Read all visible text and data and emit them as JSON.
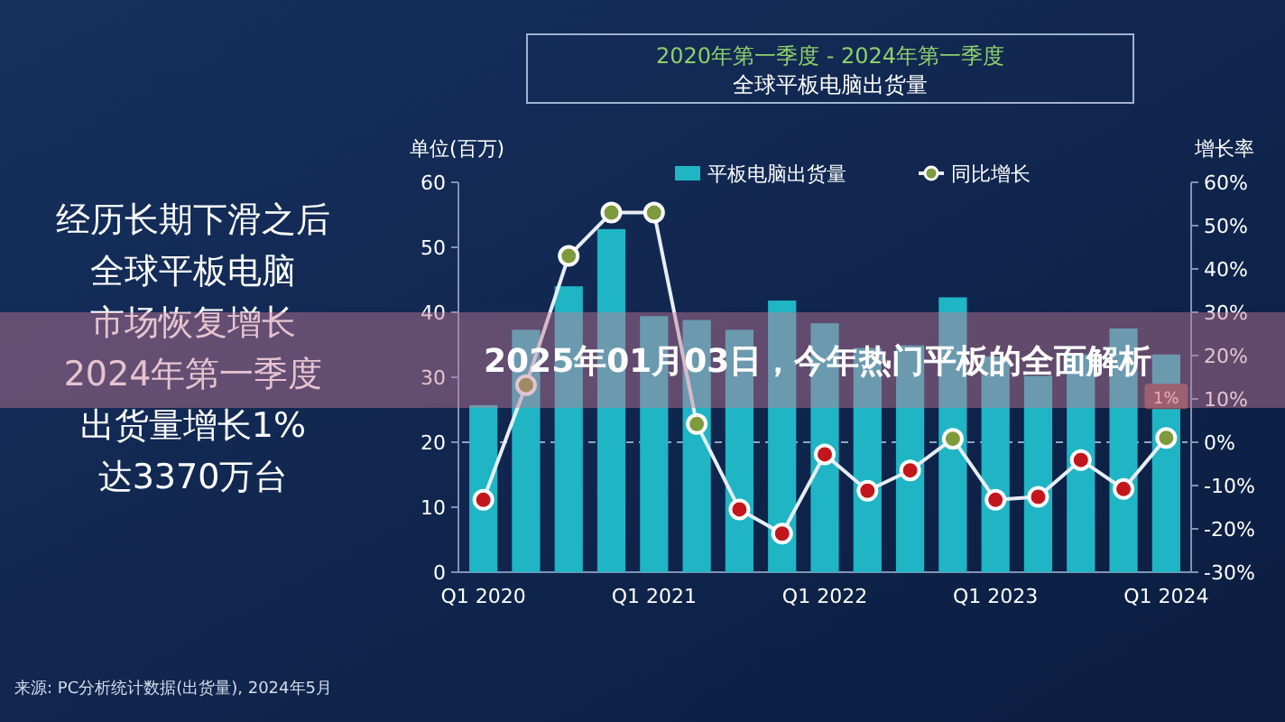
{
  "chart_data": {
    "type": "bar",
    "title": "2020年第一季度 - 2024年第一季度",
    "subtitle": "全球平板电脑出货量",
    "ylabel": "单位(百万)",
    "y2label": "增长率",
    "categories": [
      "Q1 2020",
      null,
      null,
      null,
      "Q1 2021",
      null,
      null,
      null,
      "Q1 2022",
      null,
      null,
      null,
      "Q1 2023",
      null,
      null,
      null,
      "Q1 2024"
    ],
    "series": [
      {
        "name": "平板电脑出货量",
        "color": "#1fb5c4",
        "values": [
          25.7,
          37.3,
          44.0,
          52.8,
          39.4,
          38.8,
          37.3,
          41.8,
          38.3,
          34.5,
          34.9,
          42.3,
          33.2,
          30.2,
          33.5,
          37.5,
          33.5
        ]
      },
      {
        "name": "同比增长",
        "type": "line",
        "axis": "y2",
        "color": "#e6edf5",
        "marker": "circle",
        "values": [
          -13.3,
          13.2,
          43,
          53,
          53,
          4.2,
          -15.5,
          -21.1,
          -2.8,
          -11.2,
          -6.5,
          0.8,
          -13.3,
          -12.6,
          -4.1,
          -10.8,
          1
        ],
        "colors": [
          "#c3161c",
          "#7d9a3c",
          "#7d9a3c",
          "#7d9a3c",
          "#7d9a3c",
          "#7d9a3c",
          "#c3161c",
          "#c3161c",
          "#c3161c",
          "#c3161c",
          "#c3161c",
          "#7d9a3c",
          "#c3161c",
          "#c3161c",
          "#c3161c",
          "#c3161c",
          "#7d9a3c"
        ],
        "value_labels": [
          null,
          null,
          null,
          null,
          null,
          null,
          null,
          null,
          null,
          null,
          null,
          null,
          null,
          null,
          null,
          null,
          "1%"
        ]
      }
    ],
    "ylim": [
      0,
      60
    ],
    "yticks": [
      0,
      10,
      20,
      30,
      40,
      50,
      60
    ],
    "y2lim": [
      -30,
      60
    ],
    "y2ticks": [
      {
        "value": -30,
        "label": "-30%"
      },
      {
        "value": -20,
        "label": "-20%"
      },
      {
        "value": -10,
        "label": "-10%"
      },
      {
        "value": 0,
        "label": "0%"
      },
      {
        "value": 10,
        "label": "10%"
      },
      {
        "value": 20,
        "label": "20%"
      },
      {
        "value": 30,
        "label": "30%"
      },
      {
        "value": 40,
        "label": "40%"
      },
      {
        "value": 50,
        "label": "50%"
      },
      {
        "value": 60,
        "label": "60%"
      }
    ],
    "ref_lines": [
      {
        "axis": "y2",
        "value": 0,
        "line_style": "dashed",
        "color": "#8fa6c4"
      }
    ],
    "legend": "top",
    "annotations": [
      "经历长期下滑之后",
      "全球平板电脑",
      "市场恢复增长",
      "2024年第一季度",
      "出货量增长1%",
      "达3370万台",
      "来源: PC分析统计数据(出货量), 2024年5月",
      "2025年01月03日，今年热门平板的全面解析"
    ]
  }
}
